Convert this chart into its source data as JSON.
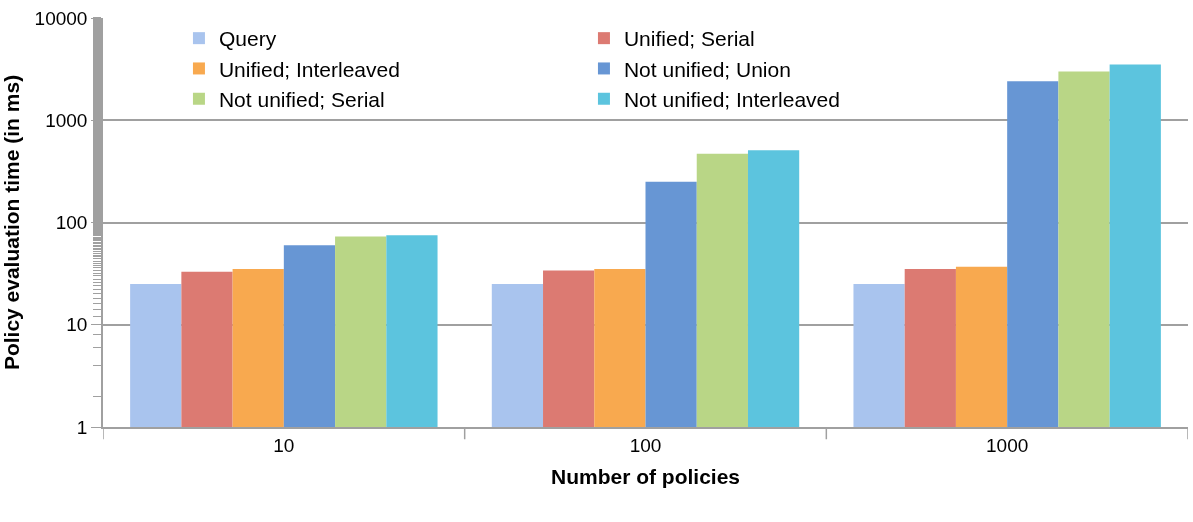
{
  "chart_data": {
    "type": "bar",
    "xlabel": "Number of policies",
    "ylabel": "Policy evaluation time (in ms)",
    "categories": [
      "10",
      "100",
      "1000"
    ],
    "series": [
      {
        "name": "Query",
        "color": "#a9c4ee",
        "values": [
          25,
          25,
          25
        ]
      },
      {
        "name": "Unified; Serial",
        "color": "#dc7a72",
        "values": [
          33,
          34,
          35
        ]
      },
      {
        "name": "Unified; Interleaved",
        "color": "#f8a94f",
        "values": [
          35,
          35,
          37
        ]
      },
      {
        "name": "Not unified; Union",
        "color": "#6796d4",
        "values": [
          60,
          250,
          2400
        ]
      },
      {
        "name": "Not unified; Serial",
        "color": "#b9d686",
        "values": [
          73,
          470,
          3000
        ]
      },
      {
        "name": "Not unified; Interleaved",
        "color": "#5cc4de",
        "values": [
          75,
          510,
          3500
        ]
      }
    ],
    "log": true,
    "ylim": [
      1,
      10000
    ],
    "yticks": [
      1,
      10,
      100,
      1000,
      10000
    ],
    "grid": "y",
    "legend": "top"
  }
}
